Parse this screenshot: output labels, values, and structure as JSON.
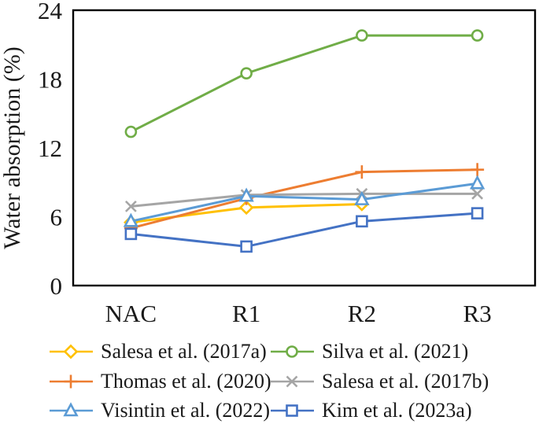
{
  "chart_data": {
    "type": "line",
    "title": "",
    "xlabel": "",
    "ylabel": "Water absorption (%)",
    "categories": [
      "NAC",
      "R1",
      "R2",
      "R3"
    ],
    "ylim": [
      0,
      24
    ],
    "yticks": [
      0,
      6,
      12,
      18,
      24
    ],
    "grid": false,
    "plot_border": true,
    "legend_position": "bottom",
    "axis_color": "#000000",
    "text_color": "#1a1a1a",
    "series": [
      {
        "name": "Salesa et al. (2017a)",
        "color": "#FFC000",
        "marker": "diamond",
        "values": [
          5.5,
          6.8,
          7.1,
          null
        ]
      },
      {
        "name": "Silva et al. (2021)",
        "color": "#70AD47",
        "marker": "circle",
        "values": [
          13.4,
          18.5,
          21.8,
          21.8
        ]
      },
      {
        "name": "Thomas et al. (2020)",
        "color": "#ED7D31",
        "marker": "plus",
        "values": [
          5.0,
          7.6,
          9.9,
          10.1
        ]
      },
      {
        "name": "Salesa et al. (2017b)",
        "color": "#A5A5A5",
        "marker": "x",
        "values": [
          6.9,
          7.9,
          8.0,
          8.0
        ]
      },
      {
        "name": "Visintin et al. (2022)",
        "color": "#5B9BD5",
        "marker": "triangle",
        "values": [
          5.6,
          7.8,
          7.5,
          8.9
        ]
      },
      {
        "name": "Kim et al. (2023a)",
        "color": "#4472C4",
        "marker": "square",
        "values": [
          4.5,
          3.4,
          5.6,
          6.3
        ]
      }
    ]
  }
}
